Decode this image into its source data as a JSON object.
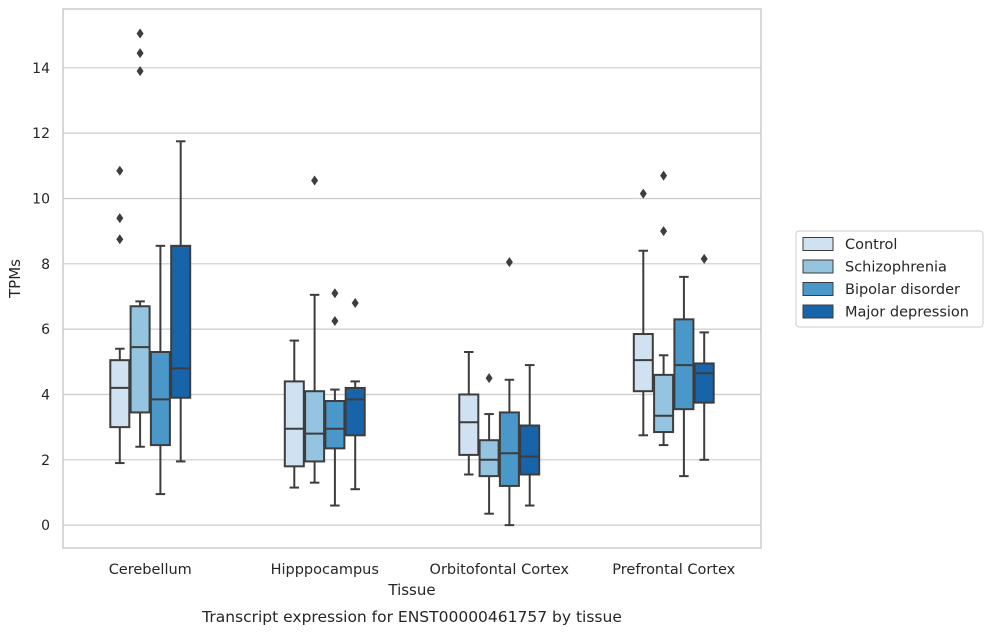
{
  "chart_data": {
    "type": "box",
    "title": "Transcript expression for ENST00000461757 by tissue",
    "xlabel": "Tissue",
    "ylabel": "TPMs",
    "ylim": [
      -0.7,
      15.8
    ],
    "yticks": [
      0,
      2,
      4,
      6,
      8,
      10,
      12,
      14
    ],
    "grid": "horizontal",
    "legend_position": "right",
    "categories": [
      "Cerebellum",
      "Hipppocampus",
      "Orbitofontal Cortex",
      "Prefrontal Cortex"
    ],
    "series": [
      {
        "name": "Control",
        "color": "#d0e1f2",
        "boxes": [
          {
            "whislo": 1.9,
            "q1": 3.0,
            "med": 4.2,
            "q3": 5.05,
            "whishi": 5.4,
            "fliers": [
              8.75,
              9.4,
              10.85
            ]
          },
          {
            "whislo": 1.15,
            "q1": 1.8,
            "med": 2.95,
            "q3": 4.4,
            "whishi": 5.65,
            "fliers": []
          },
          {
            "whislo": 1.55,
            "q1": 2.15,
            "med": 3.15,
            "q3": 4.0,
            "whishi": 5.3,
            "fliers": []
          },
          {
            "whislo": 2.75,
            "q1": 4.1,
            "med": 5.05,
            "q3": 5.85,
            "whishi": 8.4,
            "fliers": [
              10.15
            ]
          }
        ]
      },
      {
        "name": "Schizophrenia",
        "color": "#94c4df",
        "boxes": [
          {
            "whislo": 2.4,
            "q1": 3.45,
            "med": 5.45,
            "q3": 6.7,
            "whishi": 6.85,
            "fliers": [
              13.9,
              14.45,
              15.05
            ]
          },
          {
            "whislo": 1.3,
            "q1": 1.95,
            "med": 2.8,
            "q3": 4.1,
            "whishi": 7.05,
            "fliers": [
              10.55
            ]
          },
          {
            "whislo": 0.35,
            "q1": 1.5,
            "med": 2.0,
            "q3": 2.6,
            "whishi": 3.4,
            "fliers": [
              4.5
            ]
          },
          {
            "whislo": 2.45,
            "q1": 2.85,
            "med": 3.35,
            "q3": 4.6,
            "whishi": 5.2,
            "fliers": [
              9.0,
              10.7
            ]
          }
        ]
      },
      {
        "name": "Bipolar disorder",
        "color": "#4a98c9",
        "boxes": [
          {
            "whislo": 0.95,
            "q1": 2.45,
            "med": 3.85,
            "q3": 5.3,
            "whishi": 8.55,
            "fliers": []
          },
          {
            "whislo": 0.6,
            "q1": 2.35,
            "med": 2.95,
            "q3": 3.8,
            "whishi": 4.15,
            "fliers": [
              6.25,
              7.1
            ]
          },
          {
            "whislo": 0.0,
            "q1": 1.2,
            "med": 2.2,
            "q3": 3.45,
            "whishi": 4.45,
            "fliers": [
              8.05
            ]
          },
          {
            "whislo": 1.5,
            "q1": 3.55,
            "med": 4.9,
            "q3": 6.3,
            "whishi": 7.6,
            "fliers": []
          }
        ]
      },
      {
        "name": "Major depression",
        "color": "#1764ab",
        "boxes": [
          {
            "whislo": 1.95,
            "q1": 3.9,
            "med": 4.8,
            "q3": 8.55,
            "whishi": 11.75,
            "fliers": []
          },
          {
            "whislo": 1.1,
            "q1": 2.75,
            "med": 3.85,
            "q3": 4.2,
            "whishi": 4.4,
            "fliers": [
              6.8
            ]
          },
          {
            "whislo": 0.6,
            "q1": 1.55,
            "med": 2.1,
            "q3": 3.05,
            "whishi": 4.9,
            "fliers": []
          },
          {
            "whislo": 2.0,
            "q1": 3.75,
            "med": 4.65,
            "q3": 4.95,
            "whishi": 5.9,
            "fliers": [
              8.15
            ]
          }
        ]
      }
    ]
  }
}
